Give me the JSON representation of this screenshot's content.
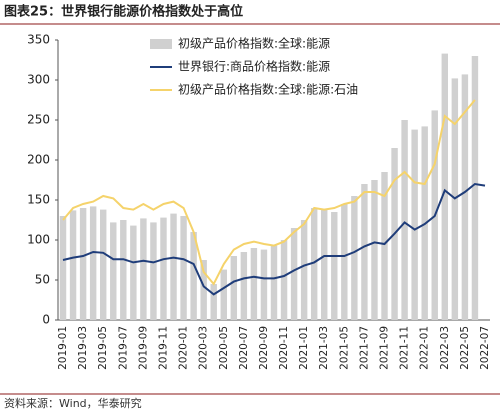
{
  "title": "图表25：世界银行能源价格指数处于高位",
  "source": "资料来源：Wind，华泰研究",
  "chart_data": {
    "type": "bar-line",
    "categories": [
      "2019-01",
      null,
      "2019-03",
      null,
      "2019-05",
      null,
      "2019-07",
      null,
      "2019-09",
      null,
      "2019-11",
      null,
      "2020-01",
      null,
      "2020-03",
      null,
      "2020-05",
      null,
      "2020-07",
      null,
      "2020-09",
      null,
      "2020-11",
      null,
      "2021-01",
      null,
      "2021-03",
      null,
      "2021-05",
      null,
      "2021-07",
      null,
      "2021-09",
      null,
      "2021-11",
      null,
      "2022-01",
      null,
      "2022-03",
      null,
      "2022-05",
      null,
      "2022-07"
    ],
    "series": [
      {
        "name": "初级产品价格指数:全球:能源",
        "kind": "bar",
        "color": "#d0d0d0",
        "values": [
          130,
          137,
          140,
          142,
          138,
          122,
          125,
          118,
          127,
          122,
          128,
          133,
          130,
          110,
          75,
          45,
          63,
          80,
          85,
          90,
          88,
          93,
          100,
          115,
          125,
          140,
          138,
          135,
          145,
          155,
          170,
          175,
          185,
          215,
          250,
          238,
          242,
          262,
          333,
          302,
          307,
          330,
          null
        ]
      },
      {
        "name": "世界银行:商品价格指数:能源",
        "kind": "line",
        "color": "#1f3d7a",
        "values": [
          75,
          78,
          80,
          85,
          84,
          76,
          76,
          72,
          74,
          72,
          76,
          78,
          76,
          70,
          42,
          32,
          40,
          48,
          52,
          54,
          52,
          52,
          55,
          62,
          68,
          72,
          80,
          80,
          80,
          85,
          92,
          97,
          95,
          108,
          122,
          113,
          120,
          130,
          162,
          152,
          160,
          170,
          168
        ]
      },
      {
        "name": "初级产品价格指数:全球:能源:石油",
        "kind": "line",
        "color": "#f5d36b",
        "values": [
          125,
          140,
          145,
          148,
          155,
          152,
          140,
          138,
          145,
          138,
          145,
          148,
          140,
          110,
          60,
          45,
          70,
          88,
          95,
          98,
          95,
          93,
          98,
          110,
          120,
          140,
          138,
          140,
          145,
          148,
          160,
          160,
          155,
          175,
          185,
          172,
          170,
          195,
          255,
          245,
          260,
          275,
          null
        ]
      }
    ],
    "ylim": [
      0,
      350
    ],
    "yticks": [
      0,
      50,
      100,
      150,
      200,
      250,
      300,
      350
    ]
  }
}
